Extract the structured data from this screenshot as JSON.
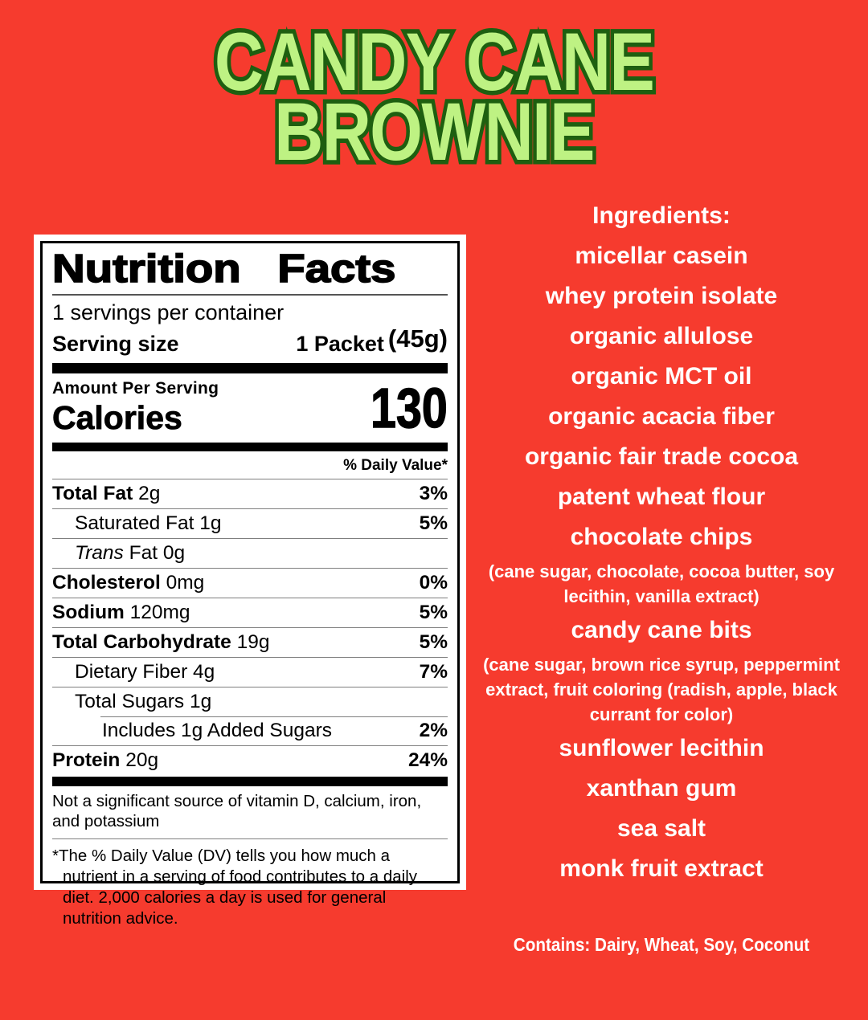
{
  "page": {
    "background_color": "#F63B2E"
  },
  "title": {
    "line1": "CANDY CANE",
    "line2": "BROWNIE",
    "fill_color": "#BEF283",
    "outline_color": "#1E5F10"
  },
  "nutrition": {
    "title": "Nutrition Facts",
    "servings_per_container": "1 servings per container",
    "serving_size_label": "Serving size",
    "serving_size_value": "1 Packet",
    "serving_size_weight": "(45g)",
    "amount_per_serving": "Amount Per Serving",
    "calories_label": "Calories",
    "calories_value": "130",
    "daily_value_header": "% Daily Value*",
    "rows": [
      {
        "bold": "Total Fat",
        "rest": " 2g",
        "dv": "3%",
        "indent": 0
      },
      {
        "bold": "",
        "rest": "Saturated Fat 1g",
        "dv": "5%",
        "indent": 1
      },
      {
        "bold": "",
        "italic": "Trans",
        "rest": " Fat 0g",
        "dv": "",
        "indent": 1
      },
      {
        "bold": "Cholesterol",
        "rest": " 0mg",
        "dv": "0%",
        "indent": 0
      },
      {
        "bold": "Sodium",
        "rest": " 120mg",
        "dv": "5%",
        "indent": 0
      },
      {
        "bold": "Total Carbohydrate",
        "rest": " 19g",
        "dv": "5%",
        "indent": 0
      },
      {
        "bold": "",
        "rest": "Dietary Fiber 4g",
        "dv": "7%",
        "indent": 1
      },
      {
        "bold": "",
        "rest": "Total Sugars 1g",
        "dv": "",
        "indent": 1
      },
      {
        "bold": "",
        "rest": "Includes 1g Added Sugars",
        "dv": "2%",
        "indent": 2,
        "sep": "indent"
      },
      {
        "bold": "Protein",
        "rest": " 20g",
        "dv": "24%",
        "indent": 0
      }
    ],
    "footnote1": "Not a significant source of vitamin D, calcium, iron, and potassium",
    "footnote2": "*The % Daily Value (DV) tells you how much a nutrient in a serving of food contributes to a daily diet. 2,000 calories a day is used for general nutrition advice."
  },
  "ingredients": {
    "heading": "Ingredients:",
    "items": [
      {
        "size": "big",
        "text": "micellar casein"
      },
      {
        "size": "big",
        "text": "whey protein isolate"
      },
      {
        "size": "big",
        "text": "organic allulose"
      },
      {
        "size": "big",
        "text": "organic MCT oil"
      },
      {
        "size": "big",
        "text": "organic acacia fiber"
      },
      {
        "size": "big",
        "text": "organic fair trade cocoa"
      },
      {
        "size": "big",
        "text": "patent wheat flour"
      },
      {
        "size": "big",
        "text": "chocolate chips"
      },
      {
        "size": "small",
        "text": "(cane sugar, chocolate, cocoa butter, soy lecithin, vanilla extract)"
      },
      {
        "size": "big",
        "text": "candy cane bits"
      },
      {
        "size": "small",
        "text": "(cane sugar, brown rice syrup, peppermint extract, fruit coloring (radish, apple, black currant for color)"
      },
      {
        "size": "big",
        "text": "sunflower lecithin"
      },
      {
        "size": "big",
        "text": "xanthan gum"
      },
      {
        "size": "big",
        "text": "sea salt"
      },
      {
        "size": "big",
        "text": "monk fruit extract"
      }
    ],
    "contains": "Contains: Dairy, Wheat, Soy, Coconut"
  }
}
